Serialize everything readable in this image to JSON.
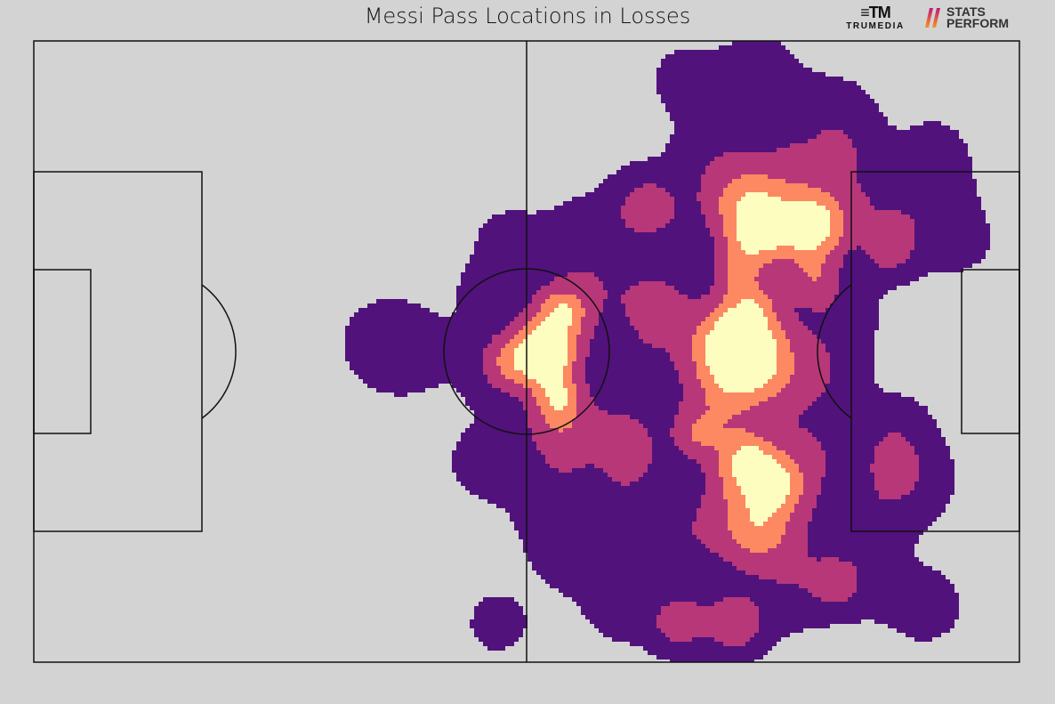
{
  "chart_data": {
    "type": "heatmap",
    "title": "Messi Pass Locations in Losses",
    "xlim": [
      0,
      100
    ],
    "ylim": [
      0,
      100
    ],
    "grid": false,
    "legend": "none",
    "colors": {
      "background": "#d3d3d3",
      "lines": "#111111",
      "levels": [
        "#51127c",
        "#b73779",
        "#fc8961",
        "#fcfdbf"
      ]
    },
    "level_thresholds": [
      0.25,
      0.9,
      1.6,
      2.3
    ],
    "density_points": [
      [
        35.4,
        51.4,
        0.5,
        3
      ],
      [
        38.1,
        50,
        0.5,
        3
      ],
      [
        48,
        67.9,
        0.45,
        2.5
      ],
      [
        47.1,
        46.4,
        0.5,
        3
      ],
      [
        45.8,
        32.1,
        0.5,
        2.8
      ],
      [
        47.1,
        6.3,
        0.45,
        2.5
      ],
      [
        54.3,
        17.8,
        0.5,
        3
      ],
      [
        59.7,
        9.2,
        0.5,
        3
      ],
      [
        67,
        6.3,
        0.5,
        3
      ],
      [
        71.5,
        7.7,
        0.5,
        3
      ],
      [
        77.8,
        12,
        0.5,
        3
      ],
      [
        83.2,
        13.5,
        0.5,
        3
      ],
      [
        90.4,
        9.2,
        0.5,
        3
      ],
      [
        86.8,
        32.1,
        0.55,
        3
      ],
      [
        89.5,
        29.2,
        0.5,
        3
      ],
      [
        87.7,
        37.8,
        0.45,
        2.5
      ],
      [
        91.3,
        75.1,
        0.5,
        3
      ],
      [
        87.7,
        69.3,
        0.55,
        3
      ],
      [
        94,
        67.9,
        0.45,
        2.5
      ],
      [
        81.4,
        88,
        0.5,
        3
      ],
      [
        73.3,
        95.1,
        0.5,
        3
      ],
      [
        66.1,
        93.7,
        0.5,
        2.5
      ],
      [
        76,
        86.5,
        0.5,
        3
      ],
      [
        68.8,
        82.2,
        0.55,
        3
      ],
      [
        61.6,
        73.6,
        0.55,
        3
      ],
      [
        55.2,
        67.9,
        0.55,
        3
      ],
      [
        57.9,
        60.7,
        0.55,
        3
      ],
      [
        61.6,
        49.3,
        0.6,
        3
      ],
      [
        59.7,
        39.3,
        0.6,
        3
      ],
      [
        54.3,
        35,
        0.6,
        3
      ],
      [
        52.5,
        26.4,
        0.55,
        3
      ],
      [
        59.7,
        26.4,
        0.55,
        3
      ],
      [
        65.2,
        20.6,
        0.6,
        3
      ],
      [
        70.6,
        20.6,
        0.6,
        3
      ],
      [
        76,
        26.4,
        0.6,
        3
      ],
      [
        79.6,
        35,
        0.6,
        3
      ],
      [
        80.5,
        46.4,
        0.6,
        3
      ],
      [
        81.4,
        56.4,
        0.6,
        3
      ],
      [
        77.8,
        77.9,
        0.55,
        3
      ],
      [
        83.2,
        73.6,
        0.55,
        3
      ],
      [
        91.3,
        82.2,
        0.45,
        2.5
      ],
      [
        83.2,
        82.2,
        0.5,
        2.5
      ],
      [
        85,
        23.5,
        0.5,
        3
      ],
      [
        52.5,
        50.7,
        0.6,
        3
      ],
      [
        45.9,
        59.3,
        0.45,
        2.5
      ],
      [
        76,
        17.8,
        0.5,
        3
      ],
      [
        53.4,
        56.4,
        1.0,
        2.5
      ],
      [
        51.8,
        49.3,
        1.0,
        2.5
      ],
      [
        53,
        39.3,
        1.0,
        2.5
      ],
      [
        48,
        48.6,
        0.9,
        2
      ],
      [
        70.6,
        73.6,
        1.0,
        3
      ],
      [
        73.3,
        75,
        1.0,
        2.5
      ],
      [
        77.8,
        70.8,
        1.0,
        3
      ],
      [
        70.6,
        52.1,
        1.1,
        3.5
      ],
      [
        74.2,
        46.4,
        1.1,
        3.5
      ],
      [
        68.8,
        39.3,
        1.0,
        3
      ],
      [
        71.5,
        29.2,
        1.0,
        3
      ],
      [
        75.1,
        29.2,
        1.0,
        3
      ],
      [
        63.4,
        57.9,
        1.0,
        2.5
      ],
      [
        60.7,
        33.5,
        0.9,
        2
      ],
      [
        65.2,
        6.3,
        0.8,
        1.8
      ],
      [
        71.5,
        5.6,
        0.8,
        1.8
      ],
      [
        86.8,
        65.8,
        0.8,
        1.8
      ],
      [
        81.4,
        12.7,
        0.8,
        1.5
      ],
      [
        73.3,
        20.6,
        0.9,
        2.2
      ],
      [
        62.5,
        72.9,
        0.9,
        2
      ],
      [
        71.5,
        50,
        2.2,
        3
      ],
      [
        73.3,
        68.2,
        1.9,
        2.3
      ],
      [
        79,
        69.6,
        1.8,
        2.3
      ],
      [
        51.8,
        49.3,
        1.8,
        1.8
      ],
      [
        53.3,
        42.8,
        1.2,
        1.5
      ],
      [
        53.7,
        56.4,
        0.9,
        1.6
      ],
      [
        72.4,
        32.8,
        1.2,
        1.8
      ],
      [
        67,
        36.4,
        0.8,
        1.6
      ],
      [
        79.2,
        61.5,
        1.0,
        1.8
      ],
      [
        71,
        62.9,
        0.9,
        1.6
      ],
      [
        72.9,
        57.9,
        1.1,
        2
      ],
      [
        75.1,
        28.5,
        0.8,
        1.6
      ]
    ]
  },
  "logos": {
    "trumedia": {
      "mark": "≡TM",
      "text": "TRUMEDIA"
    },
    "statsperform": {
      "line1": "STATS",
      "line2": "PERFORM"
    }
  }
}
